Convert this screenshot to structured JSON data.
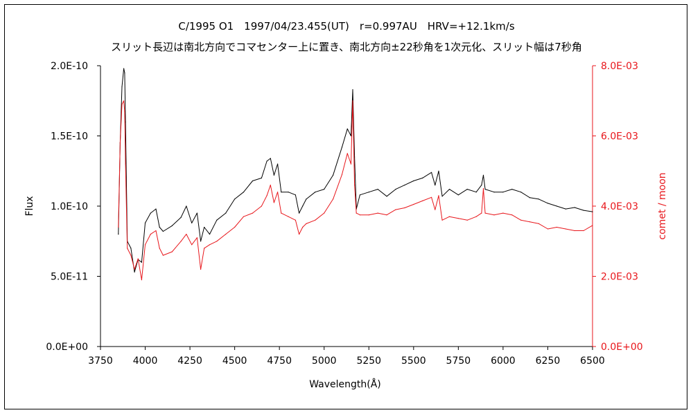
{
  "chart_data": {
    "type": "line",
    "title": "C/1995 O1　1997/04/23.455(UT)　r=0.997AU　HRV=+12.1km/s",
    "subtitle": "スリット長辺は南北方向でコマセンター上に置き、南北方向±22秒角を1次元化、スリット幅は7秒角",
    "xlabel": "Wavelength(Å)",
    "ylabel": "Flux",
    "y2label": "comet / moon",
    "xlim": [
      3750,
      6500
    ],
    "ylim": [
      0,
      2e-10
    ],
    "y2lim": [
      0,
      0.008
    ],
    "x_ticks": [
      "3750",
      "4000",
      "4250",
      "4500",
      "4750",
      "5000",
      "5250",
      "5500",
      "5750",
      "6000",
      "6250",
      "6500"
    ],
    "y_ticks": [
      "0.0E+00",
      "5.0E-11",
      "1.0E-10",
      "1.5E-10",
      "2.0E-10"
    ],
    "y2_ticks": [
      "0.0E+00",
      "2.0E-03",
      "4.0E-03",
      "6.0E-03",
      "8.0E-03"
    ],
    "grid": false,
    "series": [
      {
        "axis": "left",
        "color": "#000000",
        "x": [
          3850,
          3860,
          3870,
          3880,
          3885,
          3890,
          3900,
          3920,
          3940,
          3960,
          3980,
          4000,
          4030,
          4060,
          4080,
          4100,
          4150,
          4200,
          4230,
          4260,
          4290,
          4310,
          4330,
          4360,
          4400,
          4450,
          4500,
          4550,
          4600,
          4650,
          4680,
          4700,
          4720,
          4740,
          4760,
          4800,
          4840,
          4860,
          4880,
          4900,
          4950,
          5000,
          5050,
          5100,
          5130,
          5150,
          5160,
          5170,
          5180,
          5200,
          5250,
          5300,
          5350,
          5400,
          5450,
          5500,
          5550,
          5600,
          5620,
          5640,
          5660,
          5700,
          5750,
          5800,
          5850,
          5880,
          5890,
          5900,
          5950,
          6000,
          6050,
          6100,
          6150,
          6200,
          6250,
          6300,
          6350,
          6400,
          6450,
          6500
        ],
        "y": [
          8e-11,
          1.45e-10,
          1.85e-10,
          1.98e-10,
          1.95e-10,
          1.6e-10,
          7.5e-11,
          7e-11,
          5.3e-11,
          6.2e-11,
          6e-11,
          8.8e-11,
          9.5e-11,
          9.8e-11,
          8.5e-11,
          8.2e-11,
          8.6e-11,
          9.2e-11,
          1e-10,
          8.8e-11,
          9.5e-11,
          7.5e-11,
          8.5e-11,
          8e-11,
          9e-11,
          9.5e-11,
          1.05e-10,
          1.1e-10,
          1.18e-10,
          1.2e-10,
          1.32e-10,
          1.34e-10,
          1.22e-10,
          1.3e-10,
          1.1e-10,
          1.1e-10,
          1.08e-10,
          9.5e-11,
          1e-10,
          1.05e-10,
          1.1e-10,
          1.12e-10,
          1.22e-10,
          1.42e-10,
          1.55e-10,
          1.5e-10,
          1.83e-10,
          1.35e-10,
          9.8e-11,
          1.08e-10,
          1.1e-10,
          1.12e-10,
          1.07e-10,
          1.12e-10,
          1.15e-10,
          1.18e-10,
          1.2e-10,
          1.24e-10,
          1.15e-10,
          1.25e-10,
          1.07e-10,
          1.12e-10,
          1.08e-10,
          1.12e-10,
          1.1e-10,
          1.15e-10,
          1.22e-10,
          1.12e-10,
          1.1e-10,
          1.1e-10,
          1.12e-10,
          1.1e-10,
          1.06e-10,
          1.05e-10,
          1.02e-10,
          1e-10,
          9.8e-11,
          9.9e-11,
          9.7e-11,
          9.6e-11
        ]
      },
      {
        "axis": "right",
        "color": "#e8161b",
        "x": [
          3850,
          3860,
          3870,
          3880,
          3885,
          3890,
          3900,
          3920,
          3940,
          3960,
          3980,
          4000,
          4030,
          4060,
          4080,
          4100,
          4150,
          4200,
          4230,
          4260,
          4290,
          4310,
          4330,
          4360,
          4400,
          4450,
          4500,
          4550,
          4600,
          4650,
          4680,
          4700,
          4720,
          4740,
          4760,
          4800,
          4840,
          4860,
          4880,
          4900,
          4950,
          5000,
          5050,
          5100,
          5130,
          5150,
          5160,
          5170,
          5180,
          5200,
          5250,
          5300,
          5350,
          5400,
          5450,
          5500,
          5550,
          5600,
          5620,
          5640,
          5660,
          5700,
          5750,
          5800,
          5850,
          5880,
          5890,
          5900,
          5950,
          6000,
          6050,
          6100,
          6150,
          6200,
          6250,
          6300,
          6350,
          6400,
          6450,
          6500
        ],
        "y": [
          0.0034,
          0.0058,
          0.0069,
          0.007,
          0.0067,
          0.0052,
          0.0028,
          0.0026,
          0.0022,
          0.0025,
          0.0019,
          0.0029,
          0.0032,
          0.0033,
          0.0028,
          0.0026,
          0.0027,
          0.003,
          0.0032,
          0.0029,
          0.0031,
          0.0022,
          0.0028,
          0.0029,
          0.003,
          0.0032,
          0.0034,
          0.0037,
          0.0038,
          0.004,
          0.0043,
          0.0046,
          0.0041,
          0.0044,
          0.0038,
          0.0037,
          0.0036,
          0.0032,
          0.0034,
          0.0035,
          0.0036,
          0.0038,
          0.0042,
          0.0049,
          0.0055,
          0.0052,
          0.007,
          0.0046,
          0.0038,
          0.00375,
          0.00375,
          0.0038,
          0.00375,
          0.0039,
          0.00395,
          0.00405,
          0.00415,
          0.00425,
          0.0039,
          0.0043,
          0.0036,
          0.0037,
          0.00365,
          0.0036,
          0.0037,
          0.0038,
          0.0045,
          0.0038,
          0.00375,
          0.0038,
          0.00375,
          0.0036,
          0.00355,
          0.0035,
          0.00335,
          0.0034,
          0.00335,
          0.0033,
          0.0033,
          0.00345
        ]
      }
    ]
  }
}
